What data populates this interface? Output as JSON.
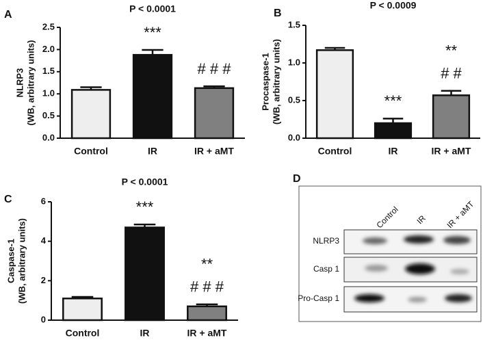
{
  "chart_data": [
    {
      "type": "bar",
      "panel": "A",
      "title": "P < 0.0001",
      "ylabel": [
        "NLRP3",
        "(WB, arbitrary units)"
      ],
      "categories": [
        "Control",
        "IR",
        "IR + aMT"
      ],
      "values": [
        1.09,
        1.88,
        1.13
      ],
      "errors": [
        0.06,
        0.11,
        0.04
      ],
      "colors": [
        "#eeeeee",
        "#111111",
        "#808080"
      ],
      "annotations": [
        [],
        [
          "***"
        ],
        [
          "# # #"
        ]
      ],
      "ylim": [
        0,
        2.5
      ],
      "yticks": [
        {
          "value": 0,
          "label": "0.0"
        },
        0.5,
        {
          "value": 1,
          "label": "1.0"
        },
        1.5,
        {
          "value": 2,
          "label": "2.0"
        },
        2.5
      ]
    },
    {
      "type": "bar",
      "panel": "B",
      "title": "P < 0.0009",
      "ylabel": [
        "Procaspase-1",
        "(WB, arbitrary units)"
      ],
      "categories": [
        "Control",
        "IR",
        "IR + aMT"
      ],
      "values": [
        1.17,
        0.2,
        0.57
      ],
      "errors": [
        0.03,
        0.06,
        0.06
      ],
      "colors": [
        "#eeeeee",
        "#111111",
        "#808080"
      ],
      "annotations": [
        [],
        [
          "***"
        ],
        [
          "**",
          "# #"
        ]
      ],
      "ylim": [
        0,
        1.5
      ],
      "yticks": [
        {
          "value": 0,
          "label": "0.0"
        },
        0.5,
        {
          "value": 1,
          "label": "1.0"
        },
        1.5
      ]
    },
    {
      "type": "bar",
      "panel": "C",
      "title": "P < 0.0001",
      "ylabel": [
        "Caspase-1",
        "(WB, arbitrary units)"
      ],
      "categories": [
        "Control",
        "IR",
        "IR + aMT"
      ],
      "values": [
        1.1,
        4.7,
        0.7
      ],
      "errors": [
        0.08,
        0.15,
        0.1
      ],
      "colors": [
        "#eeeeee",
        "#111111",
        "#808080"
      ],
      "annotations": [
        [],
        [
          "***"
        ],
        [
          "**",
          "# # #"
        ]
      ],
      "ylim": [
        0,
        6
      ],
      "yticks": [
        0,
        2,
        4,
        6
      ]
    }
  ],
  "blot": {
    "panel": "D",
    "lanes": [
      "Control",
      "IR",
      "IR + aMT"
    ],
    "rows": [
      "NLRP3",
      "Casp 1",
      "Pro-Casp 1"
    ]
  }
}
